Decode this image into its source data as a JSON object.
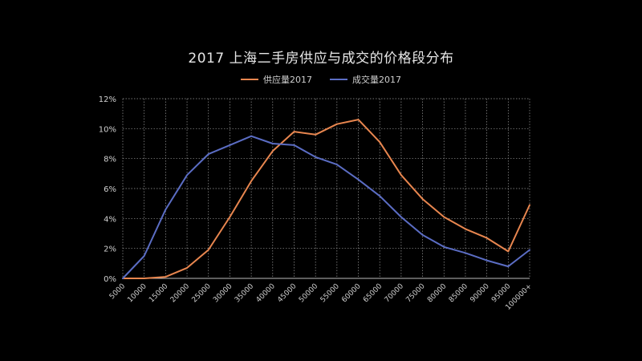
{
  "chart_data": {
    "type": "line",
    "title": "2017 上海二手房供应与成交的价格段分布",
    "categories": [
      "5000",
      "10000",
      "15000",
      "20000",
      "25000",
      "30000",
      "35000",
      "40000",
      "45000",
      "50000",
      "55000",
      "60000",
      "65000",
      "70000",
      "75000",
      "80000",
      "85000",
      "90000",
      "95000",
      "100000+"
    ],
    "series": [
      {
        "name": "供应量2017",
        "color": "#e8864f",
        "values": [
          0,
          0,
          0.1,
          0.7,
          1.9,
          4.1,
          6.5,
          8.5,
          9.8,
          9.6,
          10.3,
          10.6,
          9.1,
          6.9,
          5.3,
          4.1,
          3.3,
          2.7,
          1.8,
          4.9
        ]
      },
      {
        "name": "成交量2017",
        "color": "#5b6dc4",
        "values": [
          0,
          1.5,
          4.6,
          6.9,
          8.3,
          8.9,
          9.5,
          9.0,
          8.9,
          8.1,
          7.6,
          6.6,
          5.5,
          4.1,
          2.9,
          2.1,
          1.7,
          1.2,
          0.8,
          1.9
        ]
      }
    ],
    "ylim": [
      0,
      12
    ],
    "yticks": [
      "0%",
      "2%",
      "4%",
      "6%",
      "8%",
      "10%",
      "12%"
    ],
    "y_tick_values": [
      0,
      2,
      4,
      6,
      8,
      10,
      12
    ],
    "grid": true,
    "legend_position": "top-center"
  }
}
